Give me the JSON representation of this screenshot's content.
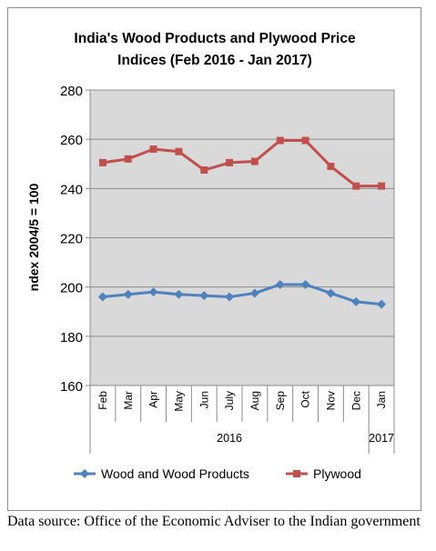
{
  "chart_data": {
    "type": "line",
    "title": "India's Wood Products and Plywood Price Indices (Feb 2016 - Jan 2017)",
    "title_lines": [
      "India's Wood Products and Plywood Price",
      "Indices (Feb 2016 - Jan 2017)"
    ],
    "ylabel": "ndex 2004/5 = 100",
    "ylim": [
      160,
      280
    ],
    "yticks": [
      160,
      180,
      200,
      220,
      240,
      260,
      280
    ],
    "categories": [
      "Feb",
      "Mar",
      "Apr",
      "May",
      "Jun",
      "July",
      "Aug",
      "Sep",
      "Oct",
      "Nov",
      "Dec",
      "Jan"
    ],
    "year_labels": [
      "2016",
      "2017"
    ],
    "grid": true,
    "legend_position": "bottom",
    "series": [
      {
        "name": "Wood and Wood Products",
        "color": "#4f81bd",
        "marker": "diamond",
        "values": [
          196,
          197,
          198,
          197,
          196.5,
          196,
          197.5,
          201,
          201,
          197.5,
          194,
          193
        ]
      },
      {
        "name": "Plywood",
        "color": "#c0504d",
        "marker": "square",
        "values": [
          250.5,
          252,
          256,
          255,
          247.5,
          250.5,
          251,
          259.5,
          259.5,
          249,
          241,
          241
        ]
      }
    ]
  },
  "source_text": "Data source: Office of the Economic Adviser to the Indian government"
}
